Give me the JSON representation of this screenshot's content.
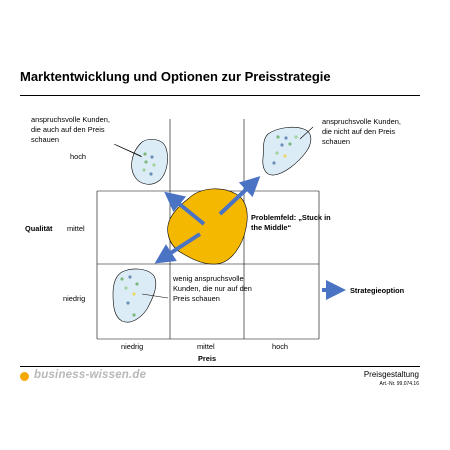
{
  "slide": {
    "title": "Marktentwicklung und Optionen zur Preisstrategie"
  },
  "axes": {
    "y_label": "Qualität",
    "y_ticks": [
      "hoch",
      "mittel",
      "niedrig"
    ],
    "x_label": "Preis",
    "x_ticks": [
      "niedrig",
      "mittel",
      "hoch"
    ]
  },
  "segments": {
    "top_left": {
      "lines": [
        "anspruchsvolle Kunden,",
        "die auch auf den Preis",
        "schauen"
      ]
    },
    "top_right": {
      "lines": [
        "anspruchsvolle Kunden,",
        "die nicht auf den Preis",
        "schauen"
      ]
    },
    "bottom_left": {
      "lines": [
        "wenig anspruchsvolle",
        "Kunden, die nur auf den",
        "Preis schauen"
      ]
    },
    "center": {
      "lines": [
        "Problemfeld: „Stuck in",
        "the Middle“"
      ]
    }
  },
  "legend": {
    "label": "Strategieoption"
  },
  "colors": {
    "center_blob": "#f5b800",
    "segment_fill": "#dcecf6",
    "arrow": "#4a73c4",
    "logo_dot": "#f5a800",
    "logo_text": "#b8b8b8"
  },
  "footer": {
    "brand": "business-wissen.de",
    "title": "Preisgestaltung",
    "article": "Art.-Nr. 99.074.16"
  }
}
